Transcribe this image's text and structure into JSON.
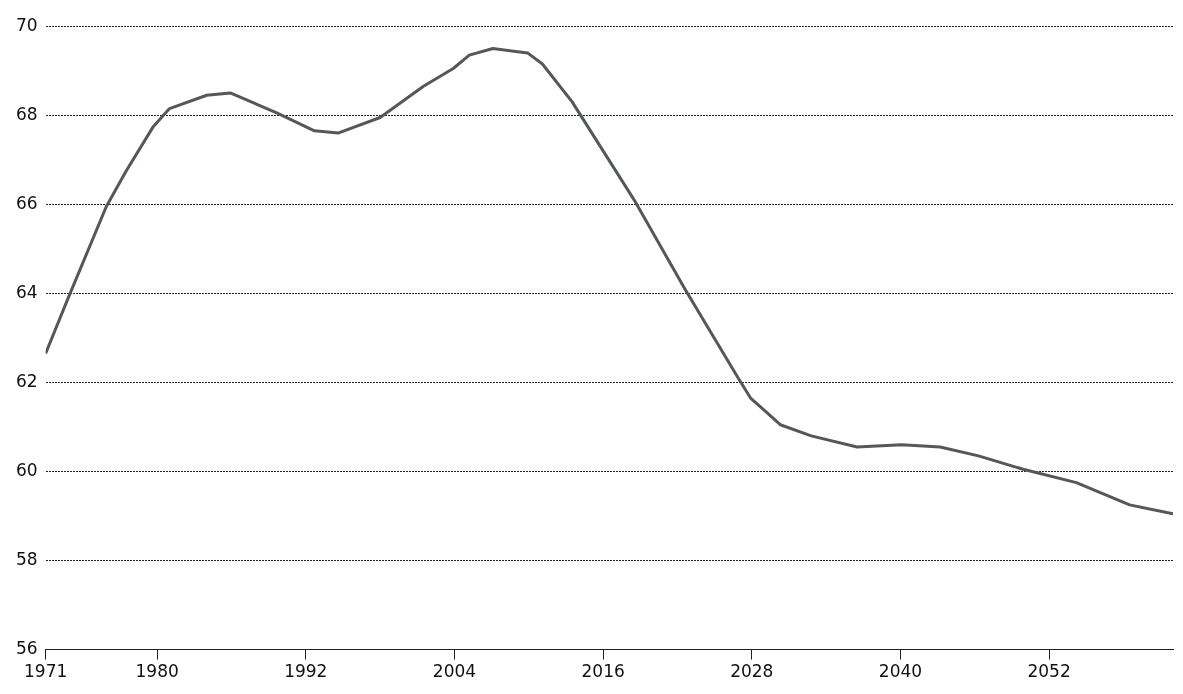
{
  "chart_data": {
    "type": "line",
    "x": [
      1971,
      1972.9,
      1975.9,
      1977.5,
      1979.7,
      1981,
      1984,
      1985.9,
      1989.7,
      1992.7,
      1994.6,
      1998,
      2001.5,
      2003.9,
      2005.2,
      2007.1,
      2009.9,
      2011.1,
      2013.5,
      2018.5,
      2022.6,
      2026.9,
      2027.9,
      2030.3,
      2032.8,
      2036.5,
      2040.1,
      2043.2,
      2046.3,
      2049.9,
      2054.2,
      2058.5,
      2062
    ],
    "series": [
      {
        "color": "#545954",
        "values": [
          62.65,
          63.95,
          65.95,
          66.75,
          67.75,
          68.15,
          68.45,
          68.5,
          68.05,
          67.65,
          67.6,
          67.95,
          68.65,
          69.05,
          69.35,
          69.5,
          69.4,
          69.15,
          68.3,
          66.1,
          64.1,
          62.1,
          61.65,
          61.05,
          60.8,
          60.55,
          60.6,
          60.55,
          60.35,
          60.05,
          59.75,
          59.25,
          59.05
        ]
      }
    ],
    "xlim": [
      1971,
      2062
    ],
    "xticks": [
      1971,
      1980,
      1992,
      2004,
      2016,
      2028,
      2040,
      2052
    ],
    "ylim": [
      56,
      70
    ],
    "yticks": [
      56,
      58,
      60,
      62,
      64,
      66,
      68,
      70
    ],
    "grid": "y",
    "legend": false,
    "marker": "none",
    "line_style": "solid"
  }
}
